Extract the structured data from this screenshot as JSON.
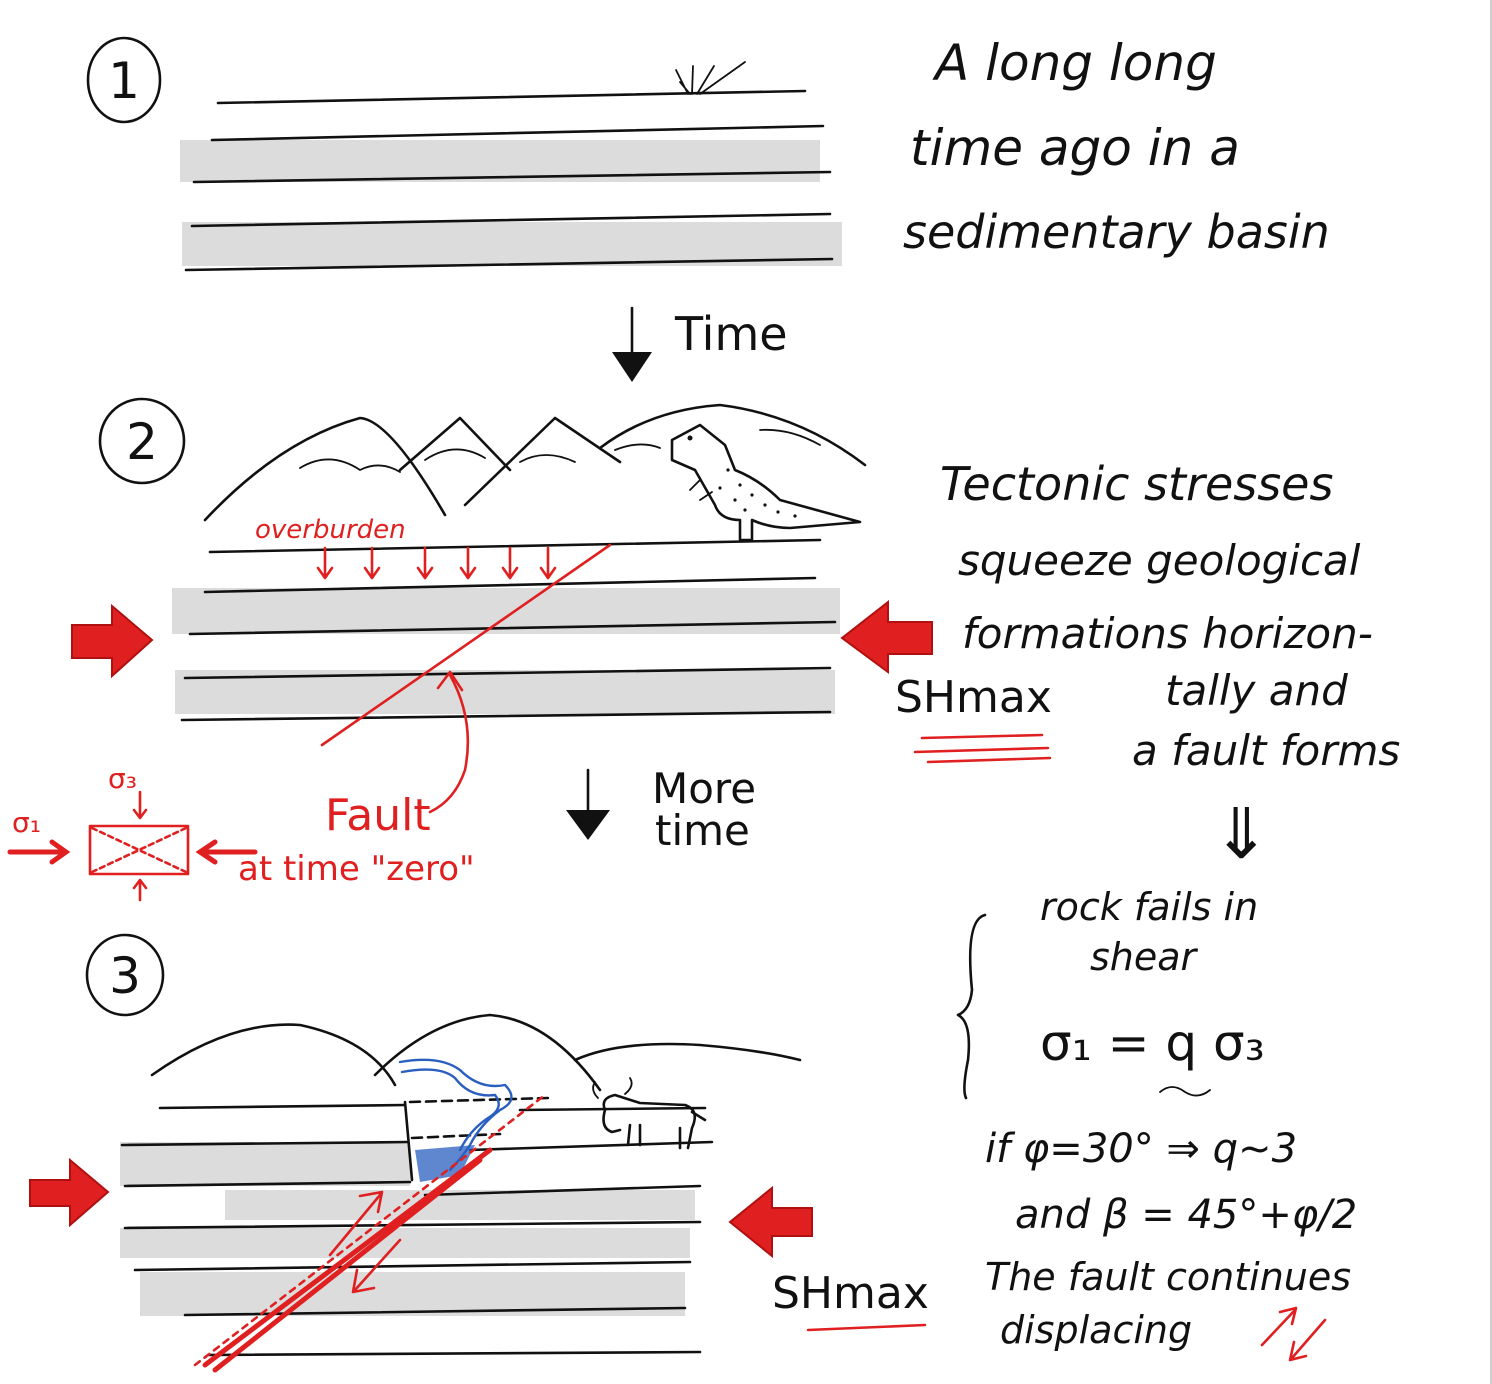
{
  "colors": {
    "ink": "#111111",
    "accent_red": "#e02020",
    "water_blue": "#2a5fc0",
    "rock_band": "#dcdcdc"
  },
  "panels": {
    "p1": {
      "number": "1"
    },
    "p2": {
      "number": "2"
    },
    "p3": {
      "number": "3"
    }
  },
  "notes": {
    "intro_line1": "A long long",
    "intro_line2": "time ago in a",
    "intro_line3": "sedimentary basin",
    "time_label": "Time",
    "more_time_line1": "More",
    "more_time_line2": "time",
    "tectonic_line1": "Tectonic stresses",
    "tectonic_line2": "squeeze geological",
    "tectonic_line3": "formations horizon-",
    "tectonic_line4": "tally and",
    "tectonic_line5": "a fault forms",
    "implies_symbol": "⇓",
    "shear_line1": "rock fails in",
    "shear_line2": "shear",
    "shear_equation": "σ₁ = q σ₃",
    "phi_line": "if φ=30° ⇒ q~3",
    "beta_line": "and β = 45°+φ/2",
    "continues_line1": "The fault continues",
    "continues_line2": "displacing"
  },
  "labels": {
    "overburden": "overburden",
    "shmax_p2": "SHmax",
    "shmax_p3": "SHmax",
    "fault": "Fault",
    "at_time_zero": "at time \"zero\"",
    "sigma1": "σ₁",
    "sigma3": "σ₃"
  },
  "icons": {
    "grass": "grass-tuft-icon",
    "dinosaur": "t-rex-icon",
    "bull": "bull-icon",
    "stress_arrow": "red-compression-arrow-icon"
  }
}
